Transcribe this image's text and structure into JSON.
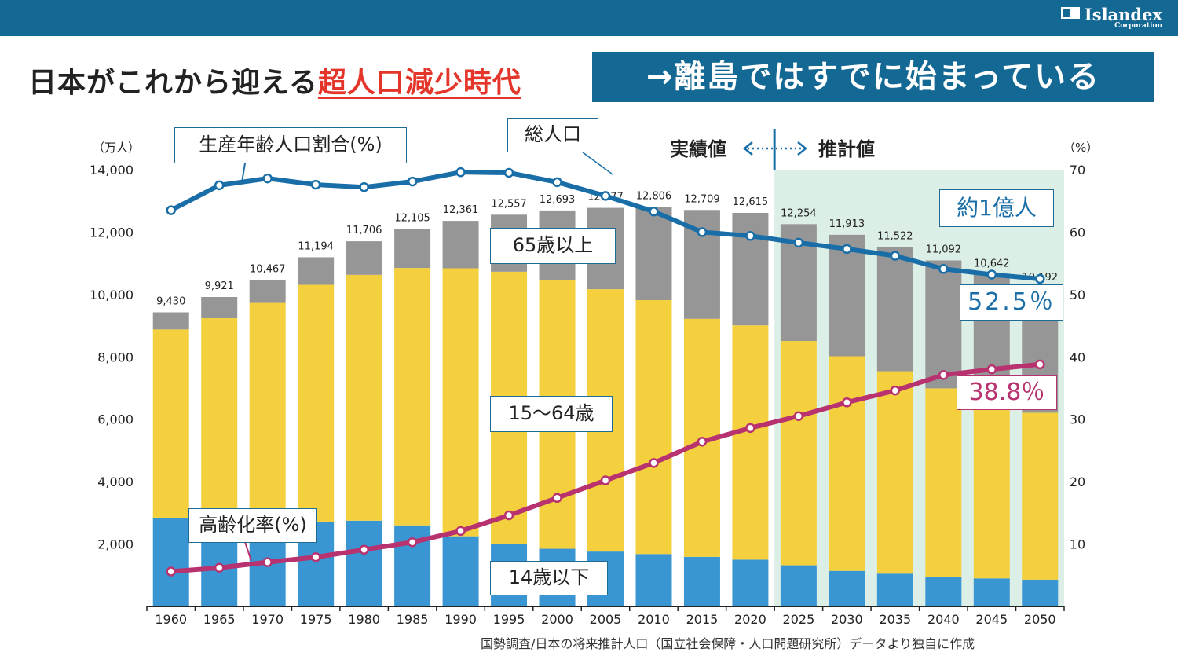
{
  "header": {
    "logo_name": "Islandex",
    "logo_sub": "Corporation",
    "title_prefix": "日本がこれから迎える",
    "title_highlight": "超人口減少時代",
    "title_right": "→離島ではすでに始まっている"
  },
  "colors": {
    "header_bg": "#136894",
    "under14": "#3a96d2",
    "age15_64": "#f4d03f",
    "over65": "#969696",
    "working_ratio_line": "#1a6ea8",
    "elderly_rate_line": "#b8326f",
    "projection_bg": "#dcefe6",
    "title_highlight": "#e4352a"
  },
  "labels": {
    "unit_left": "（万人）",
    "unit_right": "（%）",
    "working_ratio": "生産年齢人口割合(%)",
    "total_pop": "総人口",
    "actual": "実績値",
    "projected": "推計値",
    "over65": "65歳以上",
    "age15_64": "15～64歳",
    "under14": "14歳以下",
    "elderly_rate": "高齢化率(%)",
    "approx_100m": "約1億人",
    "final_working": "52.5％",
    "final_elderly": "38.8％",
    "source": "国勢調査/日本の将来推計人口（国立社会保障・人口問題研究所）データより独自に作成"
  },
  "chart_data": {
    "type": "bar",
    "stacked": true,
    "categories": [
      "1960",
      "1965",
      "1970",
      "1975",
      "1980",
      "1985",
      "1990",
      "1995",
      "2000",
      "2005",
      "2010",
      "2015",
      "2020",
      "2025",
      "2030",
      "2035",
      "2040",
      "2045",
      "2050"
    ],
    "totals": [
      9430,
      9921,
      10467,
      11194,
      11706,
      12105,
      12361,
      12557,
      12693,
      12777,
      12806,
      12709,
      12615,
      12254,
      11913,
      11522,
      11092,
      10642,
      10192
    ],
    "total_labels": [
      "9,430",
      "9,921",
      "10,467",
      "11,194",
      "11,706",
      "12,105",
      "12,361",
      "12,557",
      "12,693",
      "12,777",
      "12,806",
      "12,709",
      "12,615",
      "12,254",
      "11,913",
      "11,522",
      "11,092",
      "10,642",
      "10,192"
    ],
    "series": [
      {
        "name": "14歳以下",
        "values": [
          2840,
          2550,
          2510,
          2720,
          2750,
          2600,
          2250,
          2000,
          1850,
          1760,
          1680,
          1590,
          1500,
          1320,
          1140,
          1050,
          950,
          900,
          860
        ]
      },
      {
        "name": "15～64歳",
        "values": [
          6040,
          6690,
          7220,
          7590,
          7880,
          8250,
          8590,
          8730,
          8620,
          8410,
          8140,
          7630,
          7510,
          7190,
          6880,
          6490,
          6040,
          5550,
          5350
        ]
      },
      {
        "name": "65歳以上",
        "values": [
          550,
          681,
          737,
          884,
          1076,
          1255,
          1521,
          1827,
          2223,
          2607,
          2986,
          3489,
          3605,
          3744,
          3893,
          3982,
          4102,
          4192,
          3982
        ]
      }
    ],
    "lines": [
      {
        "name": "生産年齢人口割合(%)",
        "axis": "right",
        "values": [
          63.5,
          67.5,
          68.6,
          67.6,
          67.2,
          68.1,
          69.6,
          69.5,
          68.0,
          65.8,
          63.3,
          60.0,
          59.4,
          58.3,
          57.3,
          56.2,
          54.1,
          53.2,
          52.5
        ]
      },
      {
        "name": "高齢化率(%)",
        "axis": "right",
        "values": [
          5.6,
          6.2,
          7.1,
          7.9,
          9.1,
          10.3,
          12.1,
          14.6,
          17.4,
          20.2,
          23.0,
          26.4,
          28.6,
          30.5,
          32.7,
          34.6,
          37.1,
          38.0,
          38.8
        ]
      }
    ],
    "y_left": {
      "min": 0,
      "max": 14000,
      "ticks": [
        2000,
        4000,
        6000,
        8000,
        10000,
        12000,
        14000
      ],
      "tick_labels": [
        "2,000",
        "4,000",
        "6,000",
        "8,000",
        "10,000",
        "12,000",
        "14,000"
      ]
    },
    "y_right": {
      "min": 0,
      "max": 70,
      "ticks": [
        10,
        20,
        30,
        40,
        50,
        60,
        70
      ],
      "tick_labels": [
        "10",
        "20",
        "30",
        "40",
        "50",
        "60",
        "70"
      ]
    },
    "projection_start": "2025"
  }
}
